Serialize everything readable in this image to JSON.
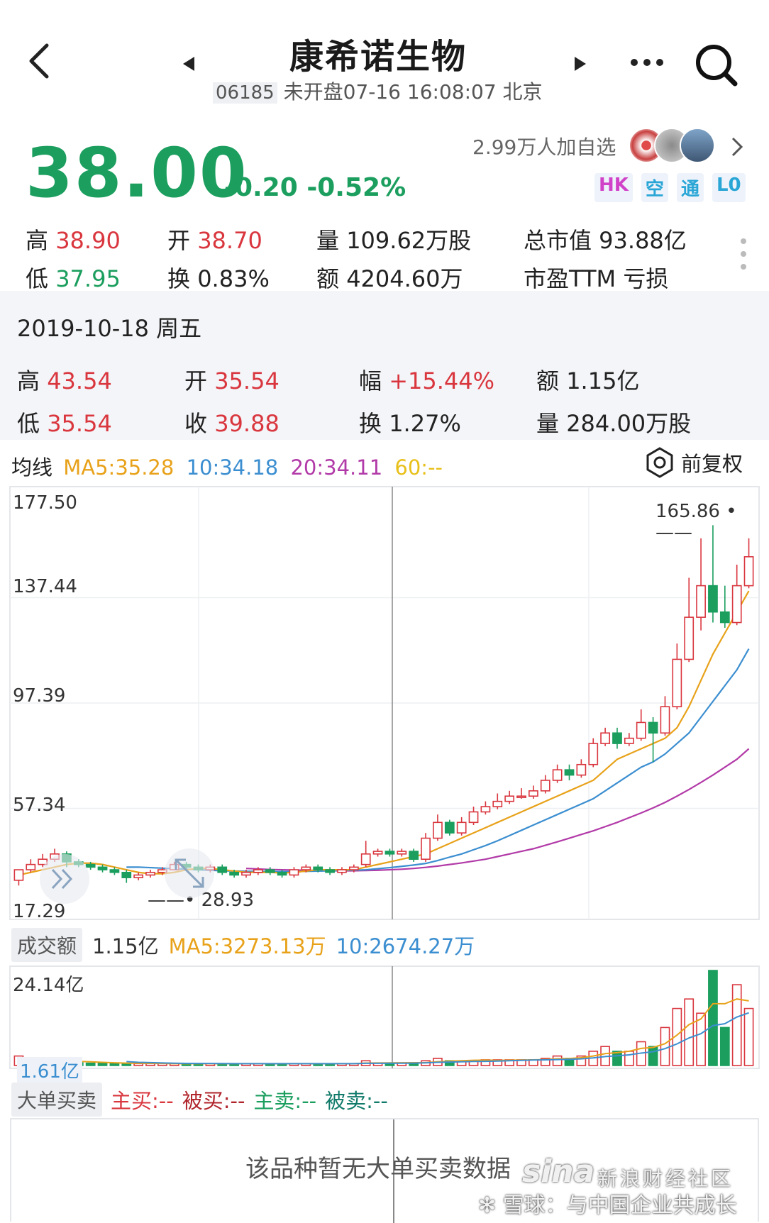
{
  "header": {
    "title": "康希诺生物",
    "code": "06185",
    "status_text": "未开盘07-16 16:08:07 北京"
  },
  "quote": {
    "price": "38.00",
    "change": "-0.20",
    "change_pct": "-0.52%",
    "watchers": "2.99万人加自选",
    "badges": [
      "HK",
      "空",
      "通",
      "L0"
    ]
  },
  "stats": {
    "high_label": "高",
    "high": "38.90",
    "low_label": "低",
    "low": "37.95",
    "open_label": "开",
    "open": "38.70",
    "turnover_label": "换",
    "turnover": "0.83%",
    "volume_label": "量",
    "volume": "109.62万股",
    "amount_label": "额",
    "amount": "4204.60万",
    "mcap": "总市值 93.88亿",
    "pe": "市盈TTM 亏损"
  },
  "day_detail": {
    "date": "2019-10-18 周五",
    "high_label": "高",
    "high": "43.54",
    "low_label": "低",
    "low": "35.54",
    "open_label": "开",
    "open": "35.54",
    "close_label": "收",
    "close": "39.88",
    "range_label": "幅",
    "range": "+15.44%",
    "turnover_label": "换",
    "turnover": "1.27%",
    "amount_label": "额",
    "amount": "1.15亿",
    "volume_label": "量",
    "volume": "284.00万股"
  },
  "ma_legend": {
    "label": "均线",
    "ma5": "MA5:35.28",
    "ma10": "10:34.18",
    "ma20": "20:34.11",
    "ma60": "60:--",
    "adjust": "前复权"
  },
  "colors": {
    "up": "#d9363e",
    "down": "#1b9e5e",
    "ma5": "#e8a21a",
    "ma10": "#3b8ed0",
    "ma20": "#b23aa8"
  },
  "price_axis": [
    "177.50",
    "137.44",
    "97.39",
    "57.34",
    "17.29"
  ],
  "annotations": {
    "max": "165.86",
    "min": "28.93"
  },
  "volume_legend": {
    "label": "成交额",
    "value": "1.15亿",
    "ma5": "MA5:3273.13万",
    "ma10": "10:2674.27万",
    "axis_top": "24.14亿",
    "axis_bottom": "1.61亿"
  },
  "big_orders": {
    "label": "大单买卖",
    "main_buy": "主买:--",
    "passive_buy": "被买:--",
    "main_sell": "主卖:--",
    "passive_sell": "被卖:--",
    "empty_text": "该品种暂无大单买卖数据"
  },
  "watermark": {
    "brand": "sina",
    "brand_cn": "新浪财经社区",
    "slogan": "雪球：与中国企业共成长"
  },
  "chart_data": {
    "type": "candlestick",
    "ylim": [
      17.29,
      177.5
    ],
    "candles": [
      [
        30,
        34,
        28,
        34
      ],
      [
        34,
        36,
        33,
        38
      ],
      [
        36,
        38,
        35,
        40
      ],
      [
        38,
        40,
        37,
        42
      ],
      [
        40,
        37,
        35,
        41
      ],
      [
        37,
        36,
        35,
        38
      ],
      [
        36,
        35,
        34,
        37
      ],
      [
        35,
        34,
        33,
        36
      ],
      [
        34,
        33,
        32,
        35
      ],
      [
        33,
        31,
        29,
        34
      ],
      [
        31,
        32,
        30,
        33
      ],
      [
        32,
        33,
        31,
        34
      ],
      [
        33,
        34,
        32,
        35
      ],
      [
        34,
        36,
        34,
        37
      ],
      [
        36,
        35,
        34,
        37
      ],
      [
        35,
        34,
        33,
        36
      ],
      [
        34,
        35,
        33,
        36
      ],
      [
        35,
        33,
        32,
        36
      ],
      [
        33,
        32,
        31,
        34
      ],
      [
        32,
        33,
        31,
        34
      ],
      [
        33,
        34,
        32,
        35
      ],
      [
        34,
        33,
        32,
        35
      ],
      [
        33,
        32,
        31,
        34
      ],
      [
        32,
        34,
        31,
        35
      ],
      [
        34,
        35,
        33,
        36
      ],
      [
        35,
        34,
        33,
        36
      ],
      [
        34,
        33,
        32,
        35
      ],
      [
        33,
        34,
        32,
        35
      ],
      [
        34,
        35,
        33,
        36
      ],
      [
        36,
        40,
        35,
        45
      ],
      [
        40,
        41,
        39,
        42
      ],
      [
        41,
        40,
        39,
        42
      ],
      [
        40,
        41,
        39,
        42
      ],
      [
        41,
        38,
        37,
        42
      ],
      [
        38,
        46,
        37,
        48
      ],
      [
        46,
        52,
        45,
        55
      ],
      [
        52,
        48,
        47,
        53
      ],
      [
        48,
        52,
        47,
        54
      ],
      [
        52,
        56,
        51,
        58
      ],
      [
        56,
        58,
        55,
        60
      ],
      [
        58,
        60,
        57,
        63
      ],
      [
        60,
        62,
        59,
        64
      ],
      [
        62,
        62,
        61,
        65
      ],
      [
        62,
        64,
        61,
        66
      ],
      [
        64,
        68,
        63,
        70
      ],
      [
        68,
        72,
        67,
        74
      ],
      [
        72,
        70,
        68,
        74
      ],
      [
        70,
        74,
        69,
        76
      ],
      [
        74,
        82,
        73,
        84
      ],
      [
        82,
        86,
        81,
        88
      ],
      [
        86,
        82,
        80,
        88
      ],
      [
        82,
        84,
        81,
        86
      ],
      [
        84,
        90,
        83,
        95
      ],
      [
        90,
        86,
        75,
        92
      ],
      [
        86,
        96,
        85,
        100
      ],
      [
        96,
        114,
        95,
        120
      ],
      [
        114,
        130,
        113,
        145
      ],
      [
        130,
        142,
        125,
        160
      ],
      [
        142,
        132,
        128,
        165
      ],
      [
        132,
        128,
        126,
        142
      ],
      [
        128,
        142,
        127,
        150
      ],
      [
        142,
        153,
        141,
        160
      ]
    ],
    "ma5": [
      32,
      33,
      34,
      35,
      36,
      36.5,
      36.5,
      36,
      35,
      34,
      33,
      32.5,
      32.5,
      33,
      34,
      34.5,
      34.5,
      34,
      33.5,
      33,
      33,
      33,
      32.8,
      33,
      33.5,
      34,
      34,
      34,
      34,
      35,
      36,
      37,
      38,
      39,
      40,
      42,
      44,
      46,
      48,
      50,
      52,
      54,
      56,
      58,
      60,
      62,
      64,
      66,
      68,
      72,
      76,
      78,
      80,
      82,
      84,
      88,
      96,
      106,
      116,
      124,
      132,
      140
    ],
    "ma10": [
      null,
      null,
      null,
      null,
      null,
      null,
      null,
      null,
      null,
      35,
      35,
      34.8,
      34.6,
      34.4,
      34.2,
      34,
      33.8,
      33.6,
      33.5,
      33.4,
      33.4,
      33.3,
      33.3,
      33.3,
      33.4,
      33.5,
      33.6,
      33.7,
      33.8,
      34,
      34.4,
      34.8,
      35.3,
      35.8,
      36.4,
      37.5,
      38.8,
      40,
      41.6,
      43.2,
      45,
      47,
      49,
      51,
      53,
      55,
      57,
      59,
      61,
      64,
      67,
      70,
      73,
      75,
      78,
      82,
      86,
      92,
      98,
      104,
      110,
      118
    ],
    "ma20": [
      null,
      null,
      null,
      null,
      null,
      null,
      null,
      null,
      null,
      null,
      null,
      null,
      null,
      null,
      null,
      null,
      null,
      null,
      null,
      34.5,
      34.3,
      34.1,
      34,
      33.9,
      33.8,
      33.7,
      33.6,
      33.6,
      33.6,
      33.7,
      33.8,
      34,
      34.2,
      34.5,
      34.9,
      35.4,
      36,
      36.6,
      37.3,
      38,
      39,
      40,
      41,
      42,
      43.3,
      44.6,
      46,
      47.4,
      48.8,
      50.4,
      52,
      53.8,
      55.6,
      57.5,
      59.6,
      62,
      64.5,
      67.2,
      70,
      73,
      76,
      80
    ],
    "volume": [
      0.2,
      0.1,
      0.1,
      0.1,
      0.08,
      0.06,
      0.05,
      0.05,
      0.05,
      0.04,
      0.04,
      0.04,
      0.04,
      0.04,
      0.04,
      0.04,
      0.04,
      0.04,
      0.04,
      0.04,
      0.04,
      0.04,
      0.04,
      0.04,
      0.04,
      0.04,
      0.04,
      0.04,
      0.04,
      0.1,
      0.05,
      0.05,
      0.05,
      0.05,
      0.1,
      0.15,
      0.1,
      0.1,
      0.1,
      0.12,
      0.12,
      0.12,
      0.12,
      0.12,
      0.15,
      0.2,
      0.15,
      0.2,
      0.3,
      0.4,
      0.3,
      0.3,
      0.5,
      0.4,
      0.8,
      1.2,
      1.4,
      1.1,
      2.0,
      0.8,
      1.7,
      1.2
    ]
  }
}
